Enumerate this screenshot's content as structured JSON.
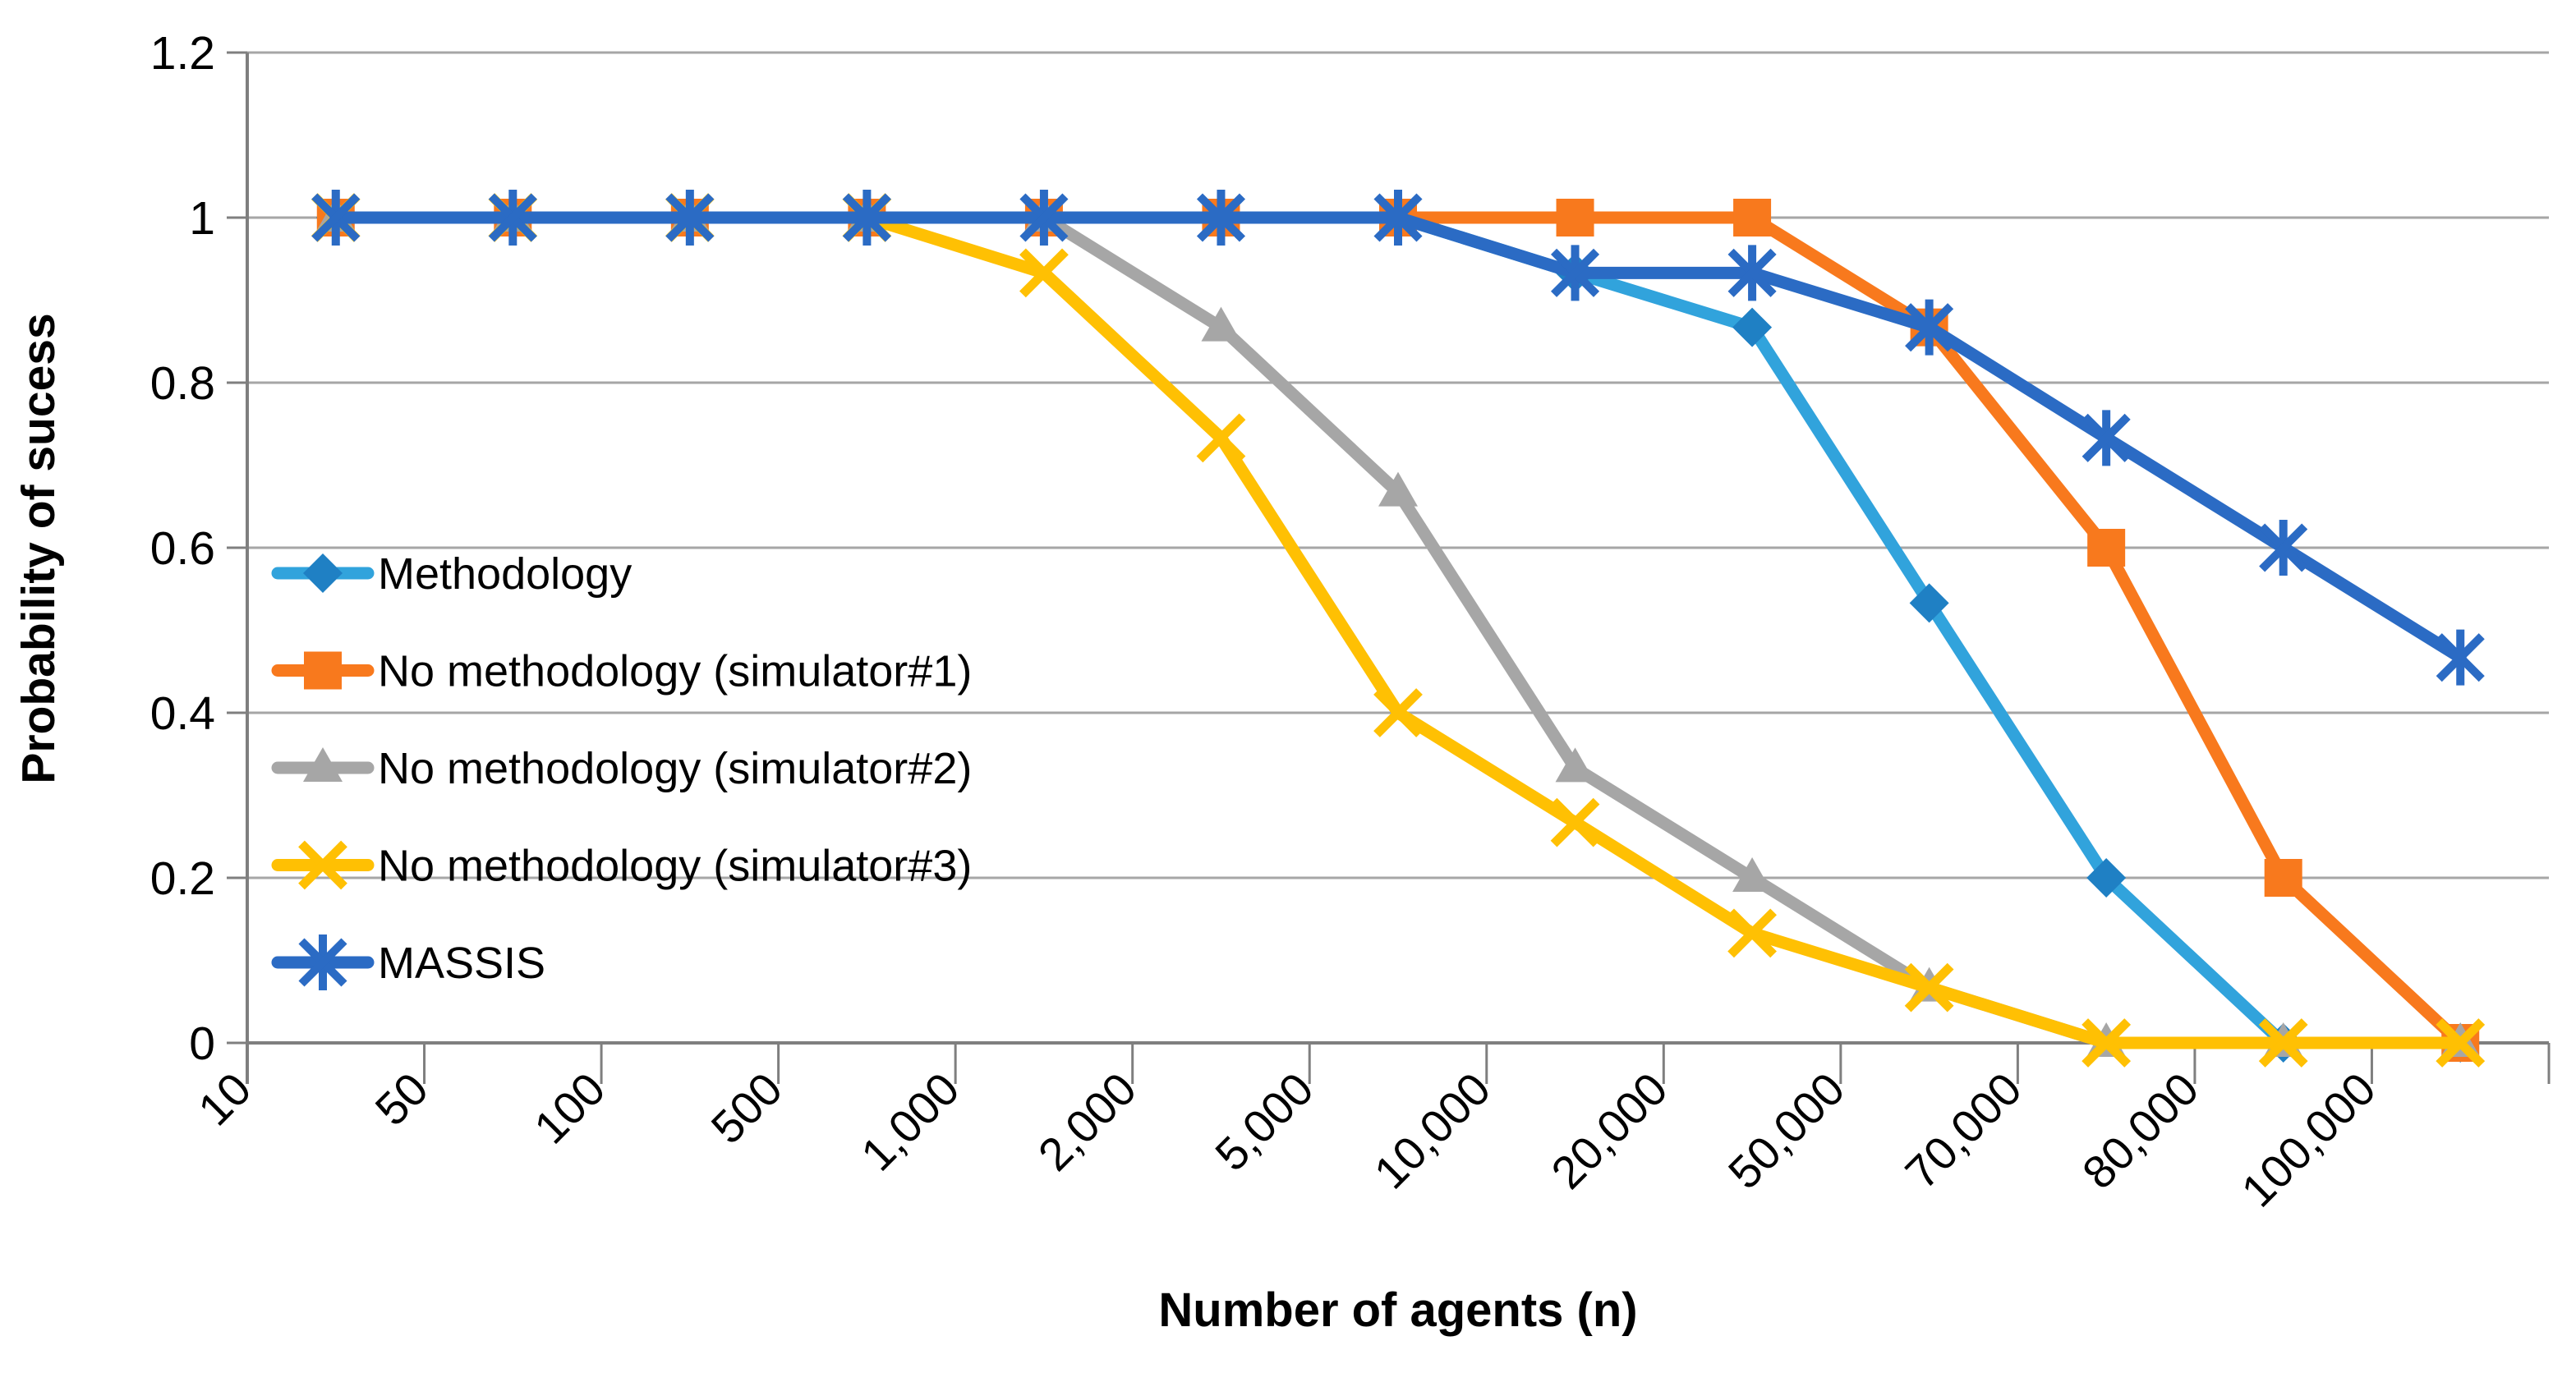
{
  "chart_data": {
    "type": "line",
    "title": "",
    "ylabel": "Probability of sucess",
    "xlabel": "Number of agents (n)",
    "categories": [
      "10",
      "50",
      "100",
      "500",
      "1,000",
      "2,000",
      "5,000",
      "10,000",
      "20,000",
      "50,000",
      "70,000",
      "80,000",
      "100,000"
    ],
    "y_ticks": [
      "0",
      "0.2",
      "0.4",
      "0.6",
      "0.8",
      "1",
      "1.2"
    ],
    "ylim": [
      0,
      1.2
    ],
    "grid": "horizontal-only",
    "legend_position": "inside-left",
    "background_color": "#FFFFFF",
    "axis_color": "#7F7F7F",
    "gridline_color": "#A6A6A6",
    "text_color": "#000000",
    "series": [
      {
        "name": "Methodology",
        "color": "#31A3DC",
        "marker": "diamond",
        "marker_color": "#1F80C4",
        "values": [
          1,
          1,
          1,
          1,
          1,
          1,
          1,
          0.933,
          0.867,
          0.533,
          0.2,
          0,
          0
        ]
      },
      {
        "name": "No methodology (simulator#1)",
        "color": "#F8791D",
        "marker": "square",
        "marker_color": "#F8791D",
        "values": [
          1,
          1,
          1,
          1,
          1,
          1,
          1,
          1,
          1,
          0.867,
          0.6,
          0.2,
          0
        ]
      },
      {
        "name": "No methodology (simulator#2)",
        "color": "#A6A6A6",
        "marker": "triangle",
        "marker_color": "#A6A6A6",
        "values": [
          1,
          1,
          1,
          1,
          1,
          0.867,
          0.667,
          0.333,
          0.2,
          0.067,
          0,
          0,
          0
        ]
      },
      {
        "name": "No methodology (simulator#3)",
        "color": "#FFC003",
        "marker": "x",
        "marker_color": "#FFC003",
        "values": [
          1,
          1,
          1,
          1,
          0.933,
          0.733,
          0.4,
          0.267,
          0.133,
          0.067,
          0,
          0,
          0
        ]
      },
      {
        "name": "MASSIS",
        "color": "#2B6BC4",
        "marker": "asterisk",
        "marker_color": "#2B6BC4",
        "values": [
          1,
          1,
          1,
          1,
          1,
          1,
          1,
          0.933,
          0.933,
          0.867,
          0.733,
          0.6,
          0.467
        ]
      }
    ]
  }
}
